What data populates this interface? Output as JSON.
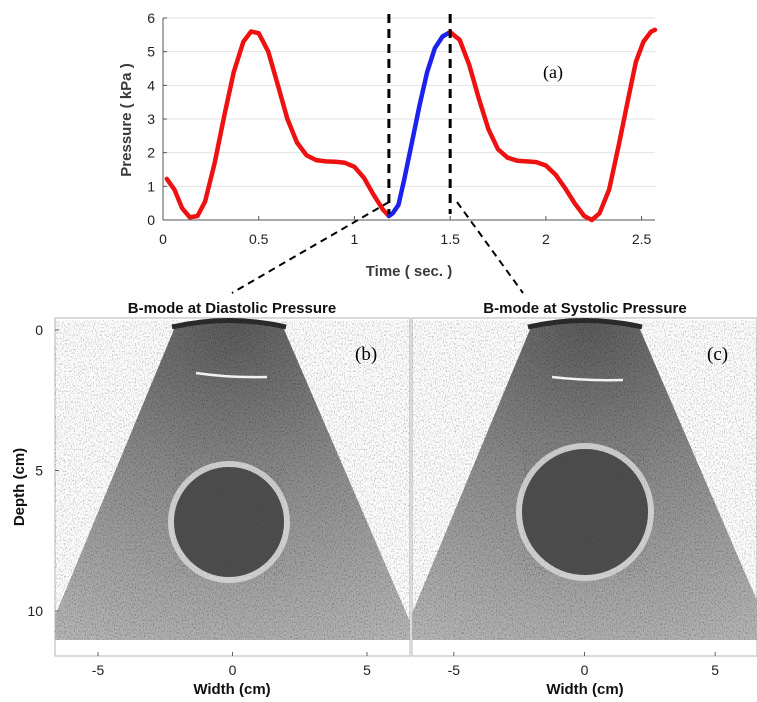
{
  "chart_data": [
    {
      "type": "line",
      "panel_label": "(a)",
      "xlabel": "Time ( sec. )",
      "ylabel": "Pressure ( kPa )",
      "xlim": [
        0,
        2.57
      ],
      "ylim": [
        0,
        6
      ],
      "xticks": [
        0,
        0.5,
        1,
        1.5,
        2,
        2.5
      ],
      "yticks": [
        0,
        1,
        2,
        3,
        4,
        5,
        6
      ],
      "grid": "y-gridlines",
      "markers": [
        {
          "x": 1.18,
          "style": "dashed",
          "color": "#000000"
        },
        {
          "x": 1.5,
          "style": "dashed",
          "color": "#000000"
        }
      ],
      "series": [
        {
          "color": "#ee1111",
          "points": [
            [
              0.02,
              1.22
            ],
            [
              0.06,
              0.9
            ],
            [
              0.1,
              0.35
            ],
            [
              0.14,
              0.08
            ],
            [
              0.18,
              0.12
            ],
            [
              0.22,
              0.55
            ],
            [
              0.27,
              1.7
            ],
            [
              0.32,
              3.1
            ],
            [
              0.37,
              4.4
            ],
            [
              0.42,
              5.3
            ],
            [
              0.46,
              5.6
            ],
            [
              0.5,
              5.55
            ],
            [
              0.55,
              5.0
            ],
            [
              0.6,
              4.0
            ],
            [
              0.65,
              3.0
            ],
            [
              0.7,
              2.3
            ],
            [
              0.75,
              1.92
            ],
            [
              0.8,
              1.78
            ],
            [
              0.85,
              1.74
            ],
            [
              0.9,
              1.73
            ],
            [
              0.95,
              1.7
            ],
            [
              1.0,
              1.58
            ],
            [
              1.05,
              1.25
            ],
            [
              1.1,
              0.75
            ],
            [
              1.15,
              0.3
            ],
            [
              1.18,
              0.12
            ]
          ]
        },
        {
          "color": "#1b22ee",
          "points": [
            [
              1.18,
              0.12
            ],
            [
              1.2,
              0.2
            ],
            [
              1.23,
              0.45
            ],
            [
              1.26,
              1.2
            ],
            [
              1.3,
              2.3
            ],
            [
              1.34,
              3.4
            ],
            [
              1.38,
              4.4
            ],
            [
              1.42,
              5.1
            ],
            [
              1.46,
              5.45
            ],
            [
              1.5,
              5.58
            ]
          ]
        },
        {
          "color": "#ee1111",
          "points": [
            [
              1.5,
              5.58
            ],
            [
              1.55,
              5.35
            ],
            [
              1.6,
              4.6
            ],
            [
              1.65,
              3.6
            ],
            [
              1.7,
              2.7
            ],
            [
              1.75,
              2.1
            ],
            [
              1.8,
              1.85
            ],
            [
              1.85,
              1.76
            ],
            [
              1.9,
              1.74
            ],
            [
              1.95,
              1.72
            ],
            [
              2.0,
              1.62
            ],
            [
              2.05,
              1.35
            ],
            [
              2.1,
              0.95
            ],
            [
              2.15,
              0.5
            ],
            [
              2.2,
              0.12
            ],
            [
              2.24,
              0.0
            ],
            [
              2.28,
              0.2
            ],
            [
              2.33,
              0.9
            ],
            [
              2.38,
              2.2
            ],
            [
              2.43,
              3.6
            ],
            [
              2.47,
              4.7
            ],
            [
              2.51,
              5.3
            ],
            [
              2.55,
              5.6
            ],
            [
              2.57,
              5.65
            ]
          ]
        }
      ]
    },
    {
      "type": "image",
      "title": "B-mode at Diastolic Pressure",
      "panel_label": "(b)",
      "xlabel": "Width (cm)",
      "ylabel": "Depth (cm)",
      "xlim": [
        -6.6,
        6.6
      ],
      "ylim": [
        0,
        11.6
      ],
      "xticks": [
        -5,
        0,
        5
      ],
      "yticks": [
        0,
        5,
        10
      ],
      "lesion_center": [
        -0.05,
        7.4
      ],
      "lesion_radius": 2.15
    },
    {
      "type": "image",
      "title": "B-mode at Systolic Pressure",
      "panel_label": "(c)",
      "xlabel": "Width (cm)",
      "xlim": [
        -6.6,
        6.6
      ],
      "ylim": [
        0,
        11.6
      ],
      "xticks": [
        -5,
        0,
        5
      ],
      "lesion_center": [
        -0.05,
        7.15
      ],
      "lesion_radius": 2.5
    }
  ]
}
